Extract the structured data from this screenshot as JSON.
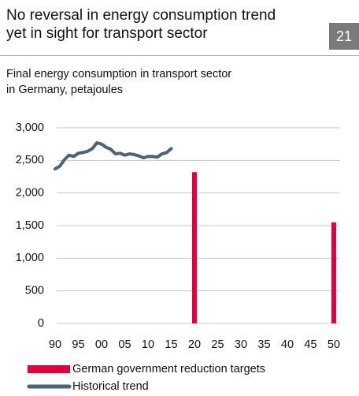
{
  "page_number": 21,
  "chart_data": {
    "type": "combo",
    "title": "No reversal in energy consumption trend\nyet in sight for transport sector",
    "subtitle": "Final energy consumption in transport sector\nin Germany, petajoules",
    "xlim": [
      1990,
      2050
    ],
    "xticks": [
      {
        "value": 1990,
        "label": "90"
      },
      {
        "value": 1995,
        "label": "95"
      },
      {
        "value": 2000,
        "label": "00"
      },
      {
        "value": 2005,
        "label": "05"
      },
      {
        "value": 2010,
        "label": "10"
      },
      {
        "value": 2015,
        "label": "15"
      },
      {
        "value": 2020,
        "label": "20"
      },
      {
        "value": 2025,
        "label": "25"
      },
      {
        "value": 2030,
        "label": "30"
      },
      {
        "value": 2035,
        "label": "35"
      },
      {
        "value": 2040,
        "label": "40"
      },
      {
        "value": 2045,
        "label": "45"
      },
      {
        "value": 2050,
        "label": "50"
      }
    ],
    "ylim": [
      0,
      3000
    ],
    "yticks": [
      0,
      500,
      {
        "value": 1000,
        "label": "1,000"
      },
      {
        "value": 1500,
        "label": "1,500"
      },
      {
        "value": 2000,
        "label": "2,000"
      },
      {
        "value": 2500,
        "label": "2,500"
      },
      {
        "value": 3000,
        "label": "3,000"
      }
    ],
    "grid": true,
    "series": [
      {
        "name": "German government reduction targets",
        "type": "bar",
        "color": "#e2003d",
        "x": [
          2020,
          2050
        ],
        "values": [
          2320,
          1550
        ]
      },
      {
        "name": "Historical trend",
        "type": "line",
        "color": "#4e6275",
        "x": [
          1990,
          1991,
          1992,
          1993,
          1994,
          1995,
          1996,
          1997,
          1998,
          1999,
          2000,
          2001,
          2002,
          2003,
          2004,
          2005,
          2006,
          2007,
          2008,
          2009,
          2010,
          2011,
          2012,
          2013,
          2014,
          2015
        ],
        "values": [
          2370,
          2410,
          2510,
          2580,
          2560,
          2610,
          2620,
          2640,
          2680,
          2770,
          2750,
          2700,
          2670,
          2600,
          2610,
          2580,
          2600,
          2590,
          2570,
          2540,
          2560,
          2560,
          2550,
          2600,
          2620,
          2680
        ]
      }
    ]
  }
}
